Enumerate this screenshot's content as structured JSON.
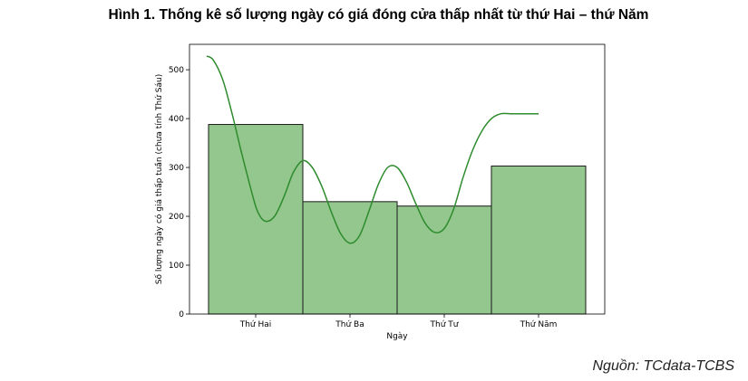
{
  "figure": {
    "title": "Hình 1. Thống kê số lượng ngày có giá đóng cửa thấp nhất từ thứ Hai – thứ Năm",
    "source": "Nguồn: TCdata-TCBS"
  },
  "colors": {
    "bar_fill": "#93c78d",
    "bar_edge": "#1a1a1a",
    "kde_line": "#2e8b2e"
  },
  "chart_data": {
    "type": "bar",
    "categories": [
      "Thứ Hai",
      "Thứ Ba",
      "Thứ Tư",
      "Thứ Năm"
    ],
    "values": [
      388,
      230,
      221,
      303
    ],
    "xlabel": "Ngày",
    "ylabel": "Số lượng ngày có giá thấp tuần (chưa tính Thứ Sáu)",
    "ylim": [
      0,
      552
    ],
    "yticks": [
      0,
      100,
      200,
      300,
      400,
      500
    ],
    "grid": false,
    "kde_curve": {
      "x": [
        -0.02,
        0.05,
        0.15,
        0.25,
        0.35,
        0.45,
        0.52,
        0.6,
        0.7,
        0.8,
        0.9,
        1.0,
        1.1,
        1.2,
        1.3,
        1.4,
        1.5,
        1.6,
        1.7,
        1.8,
        1.9,
        2.0,
        2.1,
        2.2,
        2.3,
        2.4,
        2.5,
        2.6,
        2.7,
        2.8,
        2.9,
        3.0,
        3.1,
        3.2,
        3.3,
        3.4,
        3.5
      ],
      "y": [
        528,
        520,
        480,
        410,
        330,
        255,
        210,
        190,
        200,
        240,
        290,
        314,
        300,
        262,
        210,
        165,
        145,
        160,
        210,
        265,
        300,
        300,
        270,
        225,
        185,
        167,
        175,
        215,
        280,
        335,
        375,
        400,
        410,
        410,
        410,
        410,
        410
      ]
    }
  }
}
